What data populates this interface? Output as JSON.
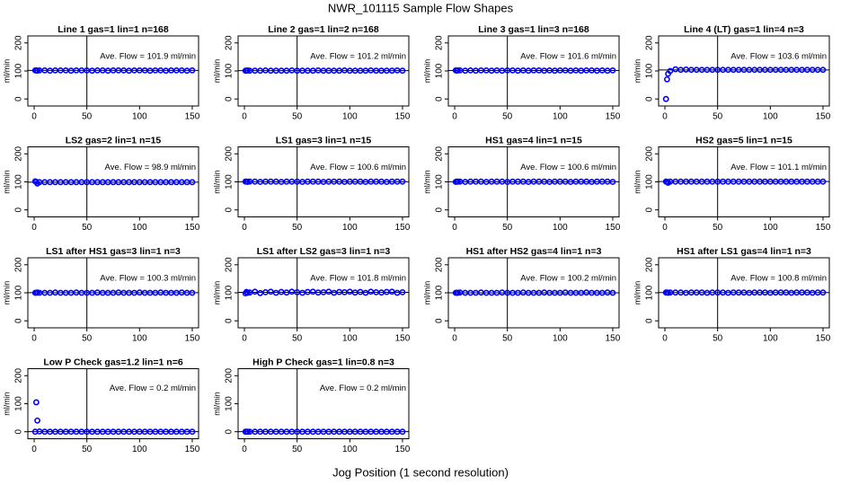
{
  "title": "NWR_101115  Sample Flow Shapes",
  "xlabel": "Jog Position (1 second resolution)",
  "chart_data": [
    {
      "type": "scatter",
      "title": "Line 1 gas=1 lin=1 n=168",
      "annotation": "Ave. Flow =  101.9  ml/min",
      "ylabel": "ml/min",
      "color": "#0000ff",
      "xlim": [
        -6,
        156
      ],
      "ylim": [
        -25,
        225
      ],
      "xticks": [
        0,
        50,
        100,
        150
      ],
      "yticks": [
        0,
        100,
        200
      ],
      "vline": 50,
      "hline": 101.9,
      "x": [
        1,
        2,
        3,
        5,
        10,
        15,
        20,
        25,
        30,
        35,
        40,
        45,
        50,
        55,
        60,
        65,
        70,
        75,
        80,
        85,
        90,
        95,
        100,
        105,
        110,
        115,
        120,
        125,
        130,
        135,
        140,
        145,
        150
      ],
      "values": [
        102,
        102,
        101,
        102,
        102,
        101,
        102,
        102,
        102,
        101,
        102,
        102,
        102,
        101,
        102,
        102,
        101,
        102,
        102,
        102,
        101,
        102,
        102,
        102,
        101,
        102,
        102,
        101,
        102,
        102,
        102,
        101,
        102
      ]
    },
    {
      "type": "scatter",
      "title": "Line 2 gas=1 lin=2 n=168",
      "annotation": "Ave. Flow =  101.2  ml/min",
      "ylabel": "ml/min",
      "color": "#0000ff",
      "xlim": [
        -6,
        156
      ],
      "ylim": [
        -25,
        225
      ],
      "xticks": [
        0,
        50,
        100,
        150
      ],
      "yticks": [
        0,
        100,
        200
      ],
      "vline": 50,
      "hline": 101.2,
      "x": [
        1,
        2,
        3,
        5,
        10,
        15,
        20,
        25,
        30,
        35,
        40,
        45,
        50,
        55,
        60,
        65,
        70,
        75,
        80,
        85,
        90,
        95,
        100,
        105,
        110,
        115,
        120,
        125,
        130,
        135,
        140,
        145,
        150
      ],
      "values": [
        101,
        101,
        102,
        101,
        101,
        101,
        102,
        101,
        101,
        101,
        101,
        102,
        101,
        101,
        101,
        101,
        102,
        101,
        101,
        101,
        101,
        102,
        101,
        101,
        101,
        101,
        102,
        101,
        101,
        101,
        101,
        102,
        101
      ]
    },
    {
      "type": "scatter",
      "title": "Line 3 gas=1 lin=3 n=168",
      "annotation": "Ave. Flow =  101.6  ml/min",
      "ylabel": "ml/min",
      "color": "#0000ff",
      "xlim": [
        -6,
        156
      ],
      "ylim": [
        -25,
        225
      ],
      "xticks": [
        0,
        50,
        100,
        150
      ],
      "yticks": [
        0,
        100,
        200
      ],
      "vline": 50,
      "hline": 101.6,
      "x": [
        1,
        2,
        3,
        5,
        10,
        15,
        20,
        25,
        30,
        35,
        40,
        45,
        50,
        55,
        60,
        65,
        70,
        75,
        80,
        85,
        90,
        95,
        100,
        105,
        110,
        115,
        120,
        125,
        130,
        135,
        140,
        145,
        150
      ],
      "values": [
        102,
        101,
        102,
        102,
        101,
        102,
        101,
        102,
        102,
        101,
        102,
        101,
        102,
        102,
        101,
        102,
        101,
        102,
        102,
        101,
        102,
        101,
        102,
        102,
        101,
        102,
        101,
        102,
        102,
        101,
        102,
        101,
        102
      ]
    },
    {
      "type": "scatter",
      "title": "Line 4 (LT) gas=1 lin=4 n=3",
      "annotation": "Ave. Flow =  103.6  ml/min",
      "ylabel": "ml/min",
      "color": "#0000ff",
      "xlim": [
        -6,
        156
      ],
      "ylim": [
        -25,
        225
      ],
      "xticks": [
        0,
        50,
        100,
        150
      ],
      "yticks": [
        0,
        100,
        200
      ],
      "vline": 50,
      "hline": 103.6,
      "x": [
        1,
        2,
        3,
        5,
        10,
        15,
        20,
        25,
        30,
        35,
        40,
        45,
        50,
        55,
        60,
        65,
        70,
        75,
        80,
        85,
        90,
        95,
        100,
        105,
        110,
        115,
        120,
        125,
        130,
        135,
        140,
        145,
        150
      ],
      "values": [
        0,
        70,
        90,
        100,
        106,
        104,
        105,
        104,
        104,
        104,
        104,
        104,
        104,
        104,
        104,
        104,
        104,
        104,
        104,
        104,
        104,
        104,
        104,
        104,
        104,
        104,
        104,
        104,
        104,
        104,
        104,
        104,
        104
      ]
    },
    {
      "type": "scatter",
      "title": "LS2 gas=2 lin=1 n=15",
      "annotation": "Ave. Flow =  98.9  ml/min",
      "ylabel": "ml/min",
      "color": "#0000ff",
      "xlim": [
        -6,
        156
      ],
      "ylim": [
        -25,
        225
      ],
      "xticks": [
        0,
        50,
        100,
        150
      ],
      "yticks": [
        0,
        100,
        200
      ],
      "vline": 50,
      "hline": 98.9,
      "x": [
        1,
        2,
        3,
        5,
        10,
        15,
        20,
        25,
        30,
        35,
        40,
        45,
        50,
        55,
        60,
        65,
        70,
        75,
        80,
        85,
        90,
        95,
        100,
        105,
        110,
        115,
        120,
        125,
        130,
        135,
        140,
        145,
        150
      ],
      "values": [
        102,
        100,
        94,
        99,
        99,
        99,
        99,
        99,
        99,
        99,
        99,
        99,
        99,
        99,
        99,
        99,
        99,
        99,
        99,
        99,
        99,
        99,
        99,
        99,
        99,
        99,
        99,
        99,
        99,
        99,
        99,
        99,
        99
      ]
    },
    {
      "type": "scatter",
      "title": "LS1 gas=3 lin=1 n=15",
      "annotation": "Ave. Flow =  100.6  ml/min",
      "ylabel": "ml/min",
      "color": "#0000ff",
      "xlim": [
        -6,
        156
      ],
      "ylim": [
        -25,
        225
      ],
      "xticks": [
        0,
        50,
        100,
        150
      ],
      "yticks": [
        0,
        100,
        200
      ],
      "vline": 50,
      "hline": 100.6,
      "x": [
        1,
        2,
        3,
        5,
        10,
        15,
        20,
        25,
        30,
        35,
        40,
        45,
        50,
        55,
        60,
        65,
        70,
        75,
        80,
        85,
        90,
        95,
        100,
        105,
        110,
        115,
        120,
        125,
        130,
        135,
        140,
        145,
        150
      ],
      "values": [
        101,
        101,
        100,
        101,
        101,
        100,
        101,
        101,
        101,
        100,
        101,
        101,
        101,
        100,
        101,
        101,
        101,
        100,
        101,
        101,
        101,
        100,
        101,
        101,
        101,
        100,
        101,
        101,
        101,
        100,
        101,
        101,
        101
      ]
    },
    {
      "type": "scatter",
      "title": "HS1 gas=4 lin=1 n=15",
      "annotation": "Ave. Flow =  100.6  ml/min",
      "ylabel": "ml/min",
      "color": "#0000ff",
      "xlim": [
        -6,
        156
      ],
      "ylim": [
        -25,
        225
      ],
      "xticks": [
        0,
        50,
        100,
        150
      ],
      "yticks": [
        0,
        100,
        200
      ],
      "vline": 50,
      "hline": 100.6,
      "x": [
        1,
        2,
        3,
        5,
        10,
        15,
        20,
        25,
        30,
        35,
        40,
        45,
        50,
        55,
        60,
        65,
        70,
        75,
        80,
        85,
        90,
        95,
        100,
        105,
        110,
        115,
        120,
        125,
        130,
        135,
        140,
        145,
        150
      ],
      "values": [
        100,
        101,
        101,
        101,
        100,
        101,
        101,
        101,
        100,
        101,
        101,
        101,
        100,
        101,
        101,
        101,
        100,
        101,
        101,
        101,
        100,
        101,
        101,
        101,
        100,
        101,
        101,
        101,
        100,
        101,
        101,
        101,
        100
      ]
    },
    {
      "type": "scatter",
      "title": "HS2 gas=5 lin=1 n=15",
      "annotation": "Ave. Flow =  101.1  ml/min",
      "ylabel": "ml/min",
      "color": "#0000ff",
      "xlim": [
        -6,
        156
      ],
      "ylim": [
        -25,
        225
      ],
      "xticks": [
        0,
        50,
        100,
        150
      ],
      "yticks": [
        0,
        100,
        200
      ],
      "vline": 50,
      "hline": 101.1,
      "x": [
        1,
        2,
        3,
        5,
        10,
        15,
        20,
        25,
        30,
        35,
        40,
        45,
        50,
        55,
        60,
        65,
        70,
        75,
        80,
        85,
        90,
        95,
        100,
        105,
        110,
        115,
        120,
        125,
        130,
        135,
        140,
        145,
        150
      ],
      "values": [
        101,
        100,
        97,
        101,
        101,
        101,
        101,
        101,
        101,
        101,
        101,
        101,
        101,
        101,
        101,
        101,
        101,
        101,
        101,
        101,
        101,
        101,
        101,
        101,
        101,
        101,
        101,
        101,
        101,
        101,
        101,
        101,
        101
      ]
    },
    {
      "type": "scatter",
      "title": "LS1 after HS1 gas=3 lin=1 n=3",
      "annotation": "Ave. Flow =  100.3  ml/min",
      "ylabel": "ml/min",
      "color": "#0000ff",
      "xlim": [
        -6,
        156
      ],
      "ylim": [
        -25,
        225
      ],
      "xticks": [
        0,
        50,
        100,
        150
      ],
      "yticks": [
        0,
        100,
        200
      ],
      "vline": 50,
      "hline": 100.3,
      "x": [
        1,
        2,
        3,
        5,
        10,
        15,
        20,
        25,
        30,
        35,
        40,
        45,
        50,
        55,
        60,
        65,
        70,
        75,
        80,
        85,
        90,
        95,
        100,
        105,
        110,
        115,
        120,
        125,
        130,
        135,
        140,
        145,
        150
      ],
      "values": [
        100,
        100,
        101,
        100,
        100,
        100,
        101,
        100,
        100,
        100,
        101,
        100,
        100,
        100,
        101,
        100,
        100,
        100,
        101,
        100,
        100,
        100,
        101,
        100,
        100,
        100,
        101,
        100,
        100,
        100,
        101,
        100,
        100
      ]
    },
    {
      "type": "scatter",
      "title": "LS1 after LS2 gas=3 lin=1 n=3",
      "annotation": "Ave. Flow =  101.8  ml/min",
      "ylabel": "ml/min",
      "color": "#0000ff",
      "xlim": [
        -6,
        156
      ],
      "ylim": [
        -25,
        225
      ],
      "xticks": [
        0,
        50,
        100,
        150
      ],
      "yticks": [
        0,
        100,
        200
      ],
      "vline": 50,
      "hline": 101.8,
      "x": [
        1,
        2,
        3,
        5,
        10,
        15,
        20,
        25,
        30,
        35,
        40,
        45,
        50,
        55,
        60,
        65,
        70,
        75,
        80,
        85,
        90,
        95,
        100,
        105,
        110,
        115,
        120,
        125,
        130,
        135,
        140,
        145,
        150
      ],
      "values": [
        98,
        103,
        100,
        101,
        104,
        99,
        102,
        104,
        100,
        103,
        101,
        104,
        102,
        100,
        103,
        104,
        101,
        102,
        104,
        100,
        103,
        102,
        104,
        101,
        103,
        100,
        104,
        102,
        101,
        103,
        104,
        100,
        102
      ]
    },
    {
      "type": "scatter",
      "title": "HS1 after HS2 gas=4 lin=1 n=3",
      "annotation": "Ave. Flow =  100.2  ml/min",
      "ylabel": "ml/min",
      "color": "#0000ff",
      "xlim": [
        -6,
        156
      ],
      "ylim": [
        -25,
        225
      ],
      "xticks": [
        0,
        50,
        100,
        150
      ],
      "yticks": [
        0,
        100,
        200
      ],
      "vline": 50,
      "hline": 100.2,
      "x": [
        1,
        2,
        3,
        5,
        10,
        15,
        20,
        25,
        30,
        35,
        40,
        45,
        50,
        55,
        60,
        65,
        70,
        75,
        80,
        85,
        90,
        95,
        100,
        105,
        110,
        115,
        120,
        125,
        130,
        135,
        140,
        145,
        150
      ],
      "values": [
        100,
        100,
        100,
        101,
        100,
        100,
        100,
        101,
        100,
        100,
        100,
        101,
        100,
        100,
        100,
        101,
        100,
        100,
        100,
        101,
        100,
        100,
        100,
        101,
        100,
        100,
        100,
        101,
        100,
        100,
        100,
        101,
        100
      ]
    },
    {
      "type": "scatter",
      "title": "HS1 after LS1 gas=4 lin=1 n=3",
      "annotation": "Ave. Flow =  100.8  ml/min",
      "ylabel": "ml/min",
      "color": "#0000ff",
      "xlim": [
        -6,
        156
      ],
      "ylim": [
        -25,
        225
      ],
      "xticks": [
        0,
        50,
        100,
        150
      ],
      "yticks": [
        0,
        100,
        200
      ],
      "vline": 50,
      "hline": 100.8,
      "x": [
        1,
        2,
        3,
        5,
        10,
        15,
        20,
        25,
        30,
        35,
        40,
        45,
        50,
        55,
        60,
        65,
        70,
        75,
        80,
        85,
        90,
        95,
        100,
        105,
        110,
        115,
        120,
        125,
        130,
        135,
        140,
        145,
        150
      ],
      "values": [
        101,
        101,
        100,
        101,
        101,
        101,
        100,
        101,
        101,
        101,
        100,
        101,
        101,
        101,
        100,
        101,
        101,
        101,
        100,
        101,
        101,
        101,
        100,
        101,
        101,
        101,
        100,
        101,
        101,
        101,
        100,
        101,
        101
      ]
    },
    {
      "type": "scatter",
      "title": "Low P Check gas=1.2 lin=1 n=6",
      "annotation": "Ave. Flow =  0.2  ml/min",
      "ylabel": "ml/min",
      "color": "#0000ff",
      "xlim": [
        -6,
        156
      ],
      "ylim": [
        -25,
        225
      ],
      "xticks": [
        0,
        50,
        100,
        150
      ],
      "yticks": [
        0,
        100,
        200
      ],
      "vline": 50,
      "hline": 0.2,
      "x": [
        1,
        2,
        3,
        5,
        10,
        15,
        20,
        25,
        30,
        35,
        40,
        45,
        50,
        55,
        60,
        65,
        70,
        75,
        80,
        85,
        90,
        95,
        100,
        105,
        110,
        115,
        120,
        125,
        130,
        135,
        140,
        145,
        150
      ],
      "values": [
        0,
        105,
        40,
        1,
        0,
        0,
        0,
        0,
        0,
        0,
        0,
        0,
        0,
        0,
        0,
        0,
        0,
        0,
        0,
        0,
        0,
        0,
        0,
        0,
        0,
        0,
        0,
        0,
        0,
        0,
        0,
        0,
        0
      ]
    },
    {
      "type": "scatter",
      "title": "High P Check gas=1 lin=0.8 n=3",
      "annotation": "Ave. Flow =  0.2  ml/min",
      "ylabel": "ml/min",
      "color": "#0000ff",
      "xlim": [
        -6,
        156
      ],
      "ylim": [
        -25,
        225
      ],
      "xticks": [
        0,
        50,
        100,
        150
      ],
      "yticks": [
        0,
        100,
        200
      ],
      "vline": 50,
      "hline": 0.2,
      "x": [
        1,
        2,
        3,
        5,
        10,
        15,
        20,
        25,
        30,
        35,
        40,
        45,
        50,
        55,
        60,
        65,
        70,
        75,
        80,
        85,
        90,
        95,
        100,
        105,
        110,
        115,
        120,
        125,
        130,
        135,
        140,
        145,
        150
      ],
      "values": [
        0,
        0,
        0,
        0,
        0,
        0,
        0,
        0,
        0,
        0,
        0,
        0,
        0,
        0,
        0,
        0,
        0,
        0,
        0,
        0,
        0,
        0,
        0,
        0,
        0,
        0,
        0,
        0,
        0,
        0,
        0,
        0,
        0
      ]
    }
  ]
}
